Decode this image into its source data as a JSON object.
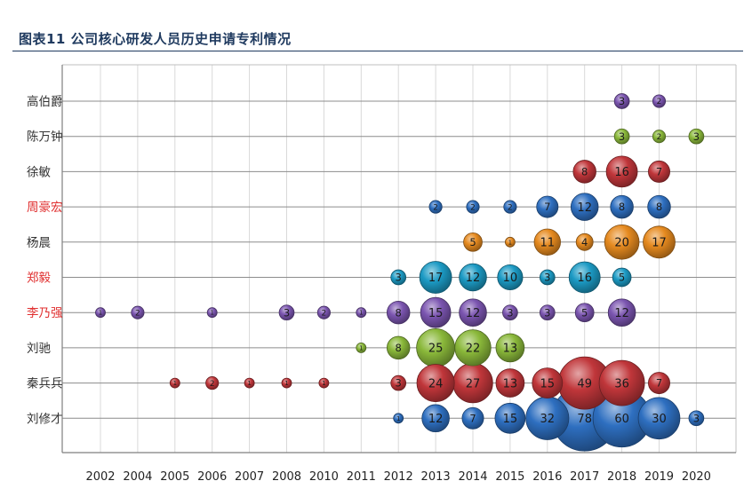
{
  "header": {
    "title": "图表11 公司核心研发人员历史申请专利情况"
  },
  "chart_data": {
    "type": "bubble",
    "title": "图表11 公司核心研发人员历史申请专利情况",
    "xlabel": "",
    "ylabel": "",
    "grid": true,
    "legend": "none",
    "x_categories": [
      "2002",
      "2004",
      "2005",
      "2006",
      "2007",
      "2008",
      "2010",
      "2011",
      "2012",
      "2013",
      "2014",
      "2015",
      "2016",
      "2017",
      "2018",
      "2019",
      "2020"
    ],
    "series": [
      {
        "name": "高伯爵",
        "label_color": "#333333",
        "bubble_color": "#7b55b0",
        "points": [
          {
            "x": "2018",
            "value": 3
          },
          {
            "x": "2019",
            "value": 2
          }
        ]
      },
      {
        "name": "陈万钟",
        "label_color": "#333333",
        "bubble_color": "#8ab83a",
        "points": [
          {
            "x": "2018",
            "value": 3
          },
          {
            "x": "2019",
            "value": 2
          },
          {
            "x": "2020",
            "value": 3
          }
        ]
      },
      {
        "name": "徐敏",
        "label_color": "#333333",
        "bubble_color": "#c0363a",
        "points": [
          {
            "x": "2017",
            "value": 8
          },
          {
            "x": "2018",
            "value": 16
          },
          {
            "x": "2019",
            "value": 7
          }
        ]
      },
      {
        "name": "周豪宏",
        "label_color": "#e03030",
        "bubble_color": "#2e6fc0",
        "points": [
          {
            "x": "2013",
            "value": 2
          },
          {
            "x": "2014",
            "value": 2
          },
          {
            "x": "2015",
            "value": 2
          },
          {
            "x": "2016",
            "value": 7
          },
          {
            "x": "2017",
            "value": 12
          },
          {
            "x": "2018",
            "value": 8
          },
          {
            "x": "2019",
            "value": 8
          }
        ]
      },
      {
        "name": "杨晨",
        "label_color": "#333333",
        "bubble_color": "#e68a1f",
        "points": [
          {
            "x": "2014",
            "value": 5
          },
          {
            "x": "2015",
            "value": 1
          },
          {
            "x": "2016",
            "value": 11
          },
          {
            "x": "2017",
            "value": 4
          },
          {
            "x": "2018",
            "value": 20
          },
          {
            "x": "2019",
            "value": 17
          }
        ]
      },
      {
        "name": "郑毅",
        "label_color": "#e03030",
        "bubble_color": "#1c9ac4",
        "points": [
          {
            "x": "2012",
            "value": 3
          },
          {
            "x": "2013",
            "value": 17
          },
          {
            "x": "2014",
            "value": 12
          },
          {
            "x": "2015",
            "value": 10
          },
          {
            "x": "2016",
            "value": 3
          },
          {
            "x": "2017",
            "value": 16
          },
          {
            "x": "2018",
            "value": 5
          }
        ]
      },
      {
        "name": "李乃强",
        "label_color": "#e03030",
        "bubble_color": "#7b55b0",
        "points": [
          {
            "x": "2002",
            "value": 1
          },
          {
            "x": "2004",
            "value": 2
          },
          {
            "x": "2006",
            "value": 1
          },
          {
            "x": "2008",
            "value": 3
          },
          {
            "x": "2010",
            "value": 2
          },
          {
            "x": "2011",
            "value": 1
          },
          {
            "x": "2012",
            "value": 8
          },
          {
            "x": "2013",
            "value": 15
          },
          {
            "x": "2014",
            "value": 12
          },
          {
            "x": "2015",
            "value": 3
          },
          {
            "x": "2016",
            "value": 3
          },
          {
            "x": "2017",
            "value": 5
          },
          {
            "x": "2018",
            "value": 12
          }
        ]
      },
      {
        "name": "刘驰",
        "label_color": "#333333",
        "bubble_color": "#8ab83a",
        "points": [
          {
            "x": "2011",
            "value": 1
          },
          {
            "x": "2012",
            "value": 8
          },
          {
            "x": "2013",
            "value": 25
          },
          {
            "x": "2014",
            "value": 22
          },
          {
            "x": "2015",
            "value": 13
          }
        ]
      },
      {
        "name": "秦兵兵",
        "label_color": "#333333",
        "bubble_color": "#c0363a",
        "points": [
          {
            "x": "2005",
            "value": 1
          },
          {
            "x": "2006",
            "value": 2
          },
          {
            "x": "2007",
            "value": 1
          },
          {
            "x": "2008",
            "value": 1
          },
          {
            "x": "2010",
            "value": 1
          },
          {
            "x": "2012",
            "value": 3
          },
          {
            "x": "2013",
            "value": 24
          },
          {
            "x": "2014",
            "value": 27
          },
          {
            "x": "2015",
            "value": 13
          },
          {
            "x": "2016",
            "value": 15
          },
          {
            "x": "2017",
            "value": 49
          },
          {
            "x": "2018",
            "value": 36
          },
          {
            "x": "2019",
            "value": 7
          }
        ]
      },
      {
        "name": "刘修才",
        "label_color": "#333333",
        "bubble_color": "#2e6fc0",
        "points": [
          {
            "x": "2012",
            "value": 1
          },
          {
            "x": "2013",
            "value": 12
          },
          {
            "x": "2014",
            "value": 7
          },
          {
            "x": "2015",
            "value": 15
          },
          {
            "x": "2016",
            "value": 32
          },
          {
            "x": "2017",
            "value": 78
          },
          {
            "x": "2018",
            "value": 60
          },
          {
            "x": "2019",
            "value": 30
          },
          {
            "x": "2020",
            "value": 3
          }
        ]
      }
    ]
  }
}
